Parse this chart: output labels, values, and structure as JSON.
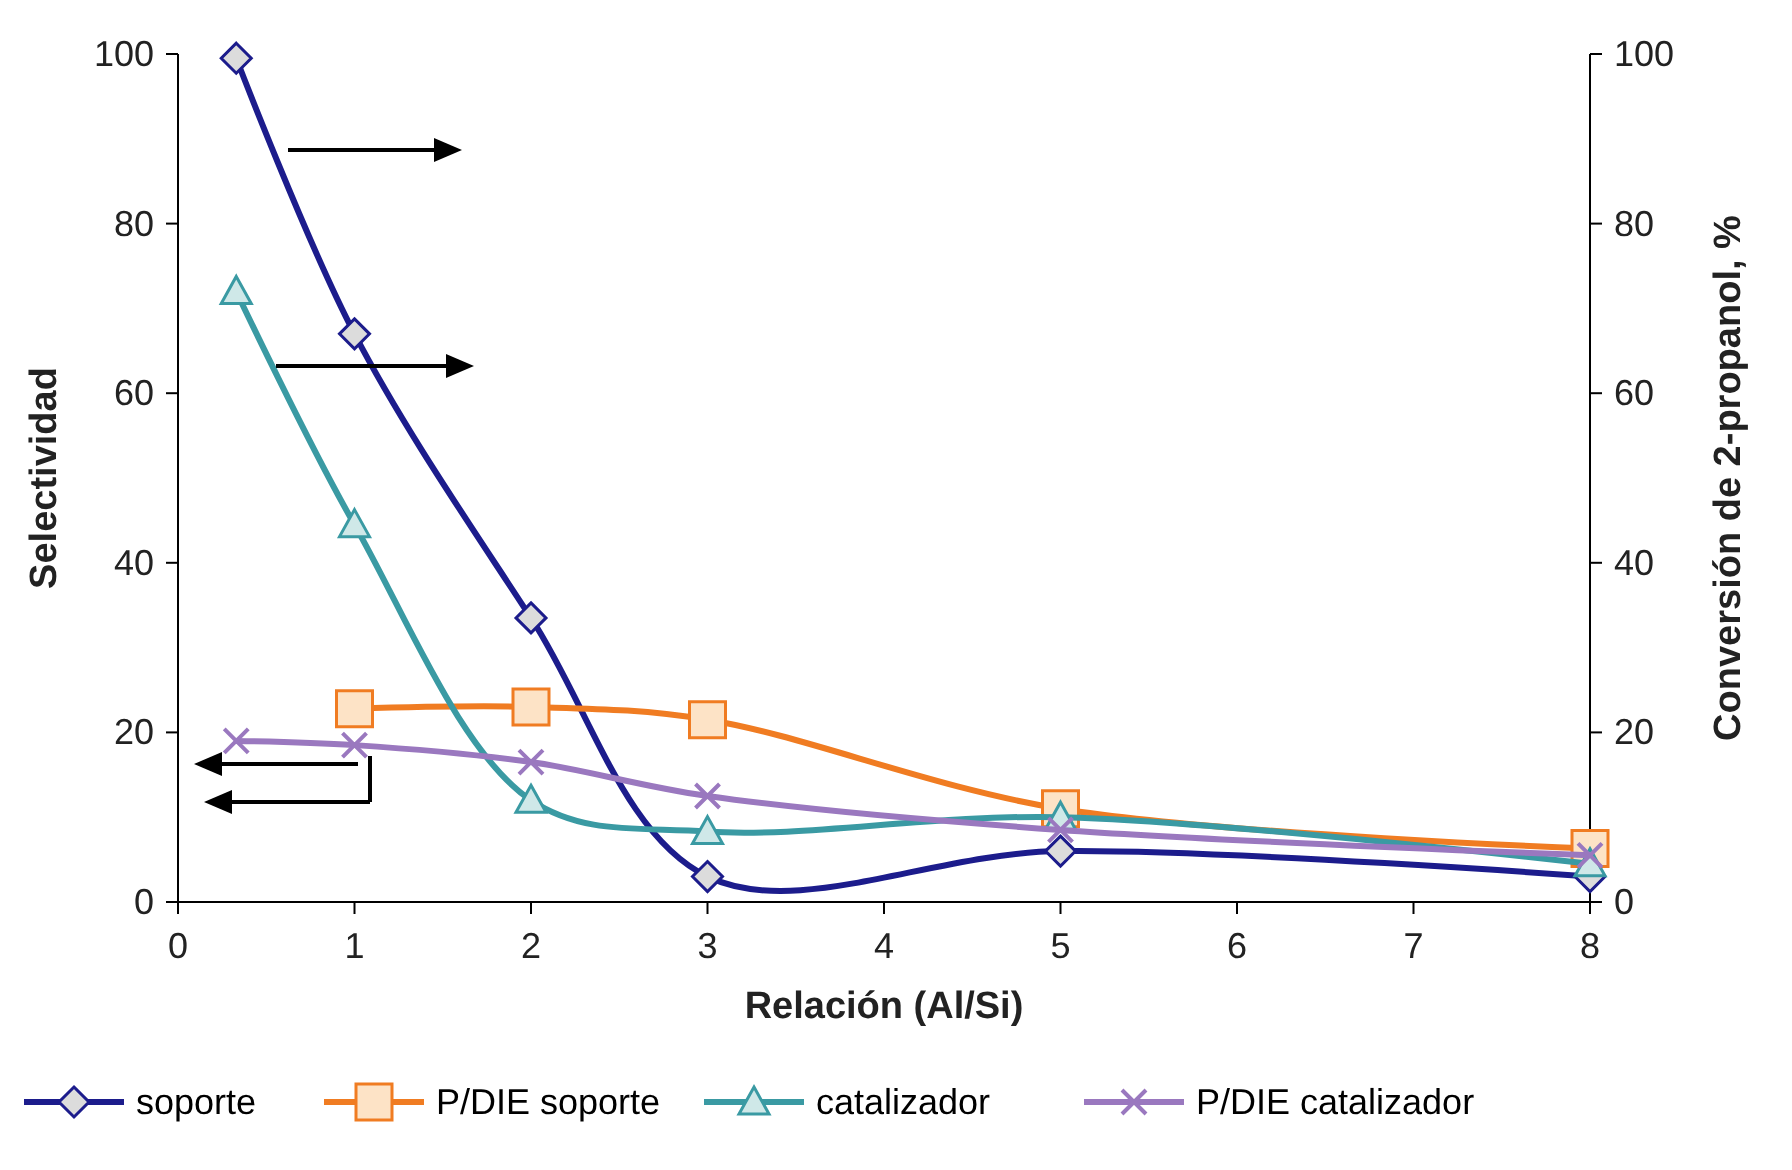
{
  "chart_data": {
    "type": "line",
    "xlabel": "Relación (Al/Si)",
    "ylabel": "Selectividad",
    "y2label": "Conversión de 2-propanol, %",
    "xlim": [
      0,
      8
    ],
    "xticks": [
      0,
      1,
      2,
      3,
      4,
      5,
      6,
      7,
      8
    ],
    "ylim": [
      0,
      100
    ],
    "yticks": [
      0,
      20,
      40,
      60,
      80,
      100
    ],
    "y2lim": [
      0,
      100
    ],
    "y2ticks": [
      0,
      20,
      40,
      60,
      80,
      100
    ],
    "legend": "bottom",
    "grid": false,
    "series": [
      {
        "name": "soporte",
        "color": "#1c1c8c",
        "marker": "diamond",
        "axis": "y2",
        "x": [
          0.33,
          1,
          2,
          3,
          5,
          8
        ],
        "values": [
          99.5,
          67,
          33.5,
          3,
          6,
          3
        ]
      },
      {
        "name": "P/DIE  soporte",
        "color": "#f07c22",
        "marker": "square",
        "axis": "y",
        "x": [
          1,
          2,
          3,
          5,
          8
        ],
        "values": [
          22.8,
          23,
          21.5,
          11,
          6.3
        ]
      },
      {
        "name": "catalizador",
        "color": "#3a9aa3",
        "marker": "triangle",
        "axis": "y2",
        "x": [
          0.33,
          1,
          2,
          3,
          5,
          8
        ],
        "values": [
          72,
          44.5,
          12,
          8.3,
          10,
          4.5
        ]
      },
      {
        "name": "P/DIE  catalizador",
        "color": "#9a78bf",
        "marker": "cross",
        "axis": "y",
        "x": [
          0.33,
          1,
          2,
          3,
          5,
          8
        ],
        "values": [
          19,
          18.5,
          16.5,
          12.5,
          8.5,
          5.5
        ]
      }
    ]
  }
}
